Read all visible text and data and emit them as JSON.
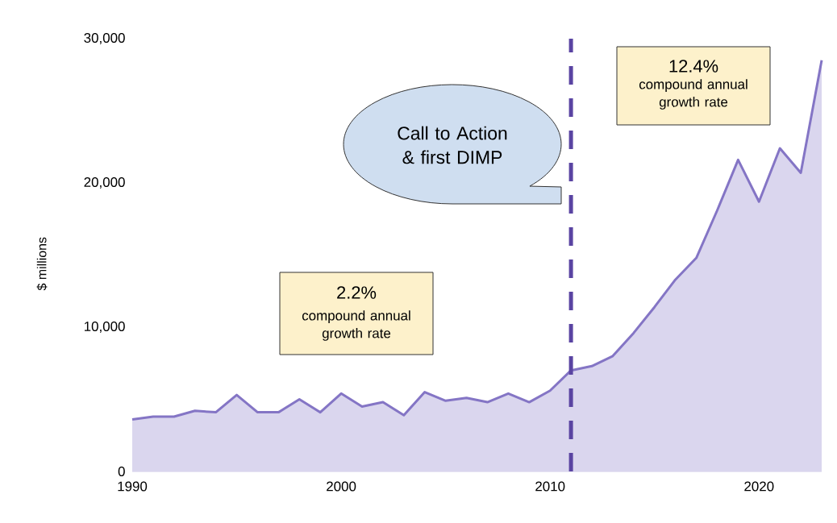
{
  "chart_data": {
    "type": "area",
    "ylabel": "$ millions",
    "x": [
      1990,
      1991,
      1992,
      1993,
      1994,
      1995,
      1996,
      1997,
      1998,
      1999,
      2000,
      2001,
      2002,
      2003,
      2004,
      2005,
      2006,
      2007,
      2008,
      2009,
      2010,
      2011,
      2012,
      2013,
      2014,
      2015,
      2016,
      2017,
      2018,
      2019,
      2020,
      2021,
      2022,
      2023
    ],
    "values": [
      3600,
      3800,
      3800,
      4200,
      4100,
      5300,
      4100,
      4100,
      5000,
      4100,
      5400,
      4500,
      4800,
      3900,
      5500,
      4900,
      5100,
      4800,
      5400,
      4800,
      5600,
      7000,
      7300,
      8000,
      9600,
      11400,
      13300,
      14800,
      18100,
      21600,
      18700,
      22400,
      20700,
      28500
    ],
    "color": "#8475c5",
    "xlim": [
      1990,
      2023
    ],
    "ylim": [
      0,
      30000
    ],
    "xticks": [
      1990,
      2000,
      2010,
      2020
    ],
    "yticks": [
      0,
      {
        "value": 10000,
        "label": "10,000"
      },
      {
        "value": 20000,
        "label": "20,000"
      },
      {
        "value": 30000,
        "label": "30,000"
      }
    ],
    "ref_lines": [
      {
        "axis": "x",
        "value": 2011,
        "color": "#5a44a2",
        "line_style": "dashed"
      }
    ],
    "annotations": [
      "Call to Action & first DIMP",
      "2.2%",
      "compound annual growth rate",
      "12.4%",
      "compound annual growth rate"
    ]
  }
}
